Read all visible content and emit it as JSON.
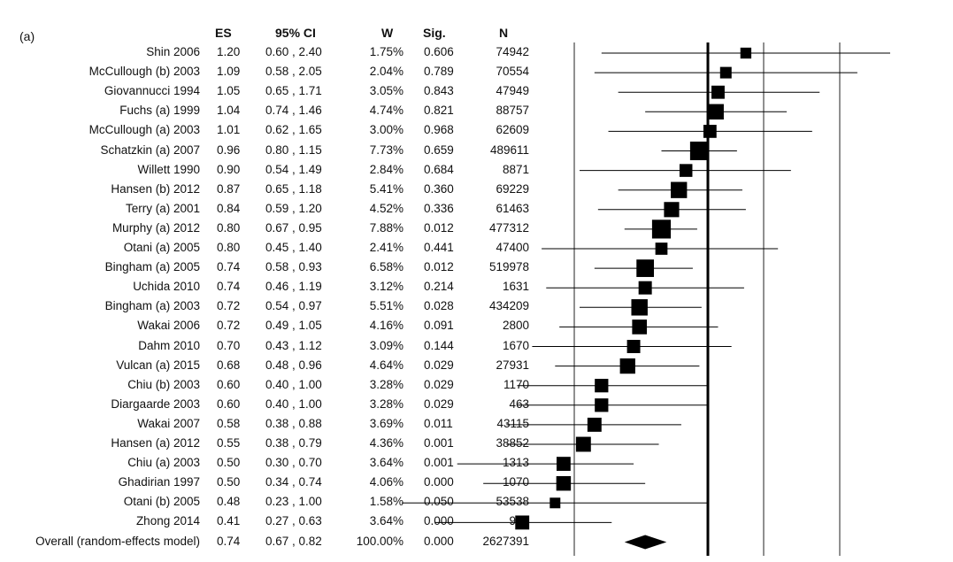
{
  "panel_label": "(a)",
  "columns": {
    "es": "ES",
    "ci": "95% CI",
    "w": "W",
    "sig": "Sig.",
    "n": "N"
  },
  "chart_data": {
    "type": "forest",
    "title": "",
    "x_scale": "log",
    "xlim": [
      0.2,
      2.6
    ],
    "reference_line": 1.0,
    "pooled_line": 0.74,
    "rows": [
      {
        "study": "Shin 2006",
        "es": 1.2,
        "es_text": "1.20",
        "ci_text": "0.60 , 2.40",
        "lo": 0.6,
        "hi": 2.4,
        "w_text": "1.75%",
        "w": 1.75,
        "sig": "0.606",
        "n": "74942"
      },
      {
        "study": "McCullough (b) 2003",
        "es": 1.09,
        "es_text": "1.09",
        "ci_text": "0.58 , 2.05",
        "lo": 0.58,
        "hi": 2.05,
        "w_text": "2.04%",
        "w": 2.04,
        "sig": "0.789",
        "n": "70554"
      },
      {
        "study": "Giovannucci 1994",
        "es": 1.05,
        "es_text": "1.05",
        "ci_text": "0.65 , 1.71",
        "lo": 0.65,
        "hi": 1.71,
        "w_text": "3.05%",
        "w": 3.05,
        "sig": "0.843",
        "n": "47949"
      },
      {
        "study": "Fuchs (a) 1999",
        "es": 1.04,
        "es_text": "1.04",
        "ci_text": "0.74 , 1.46",
        "lo": 0.74,
        "hi": 1.46,
        "w_text": "4.74%",
        "w": 4.74,
        "sig": "0.821",
        "n": "88757"
      },
      {
        "study": "McCullough (a) 2003",
        "es": 1.01,
        "es_text": "1.01",
        "ci_text": "0.62 , 1.65",
        "lo": 0.62,
        "hi": 1.65,
        "w_text": "3.00%",
        "w": 3.0,
        "sig": "0.968",
        "n": "62609"
      },
      {
        "study": "Schatzkin (a) 2007",
        "es": 0.96,
        "es_text": "0.96",
        "ci_text": "0.80 , 1.15",
        "lo": 0.8,
        "hi": 1.15,
        "w_text": "7.73%",
        "w": 7.73,
        "sig": "0.659",
        "n": "489611"
      },
      {
        "study": "Willett 1990",
        "es": 0.9,
        "es_text": "0.90",
        "ci_text": "0.54 , 1.49",
        "lo": 0.54,
        "hi": 1.49,
        "w_text": "2.84%",
        "w": 2.84,
        "sig": "0.684",
        "n": "8871"
      },
      {
        "study": "Hansen (b) 2012",
        "es": 0.87,
        "es_text": "0.87",
        "ci_text": "0.65 , 1.18",
        "lo": 0.65,
        "hi": 1.18,
        "w_text": "5.41%",
        "w": 5.41,
        "sig": "0.360",
        "n": "69229"
      },
      {
        "study": "Terry (a) 2001",
        "es": 0.84,
        "es_text": "0.84",
        "ci_text": "0.59 , 1.20",
        "lo": 0.59,
        "hi": 1.2,
        "w_text": "4.52%",
        "w": 4.52,
        "sig": "0.336",
        "n": "61463"
      },
      {
        "study": "Murphy (a) 2012",
        "es": 0.8,
        "es_text": "0.80",
        "ci_text": "0.67 , 0.95",
        "lo": 0.67,
        "hi": 0.95,
        "w_text": "7.88%",
        "w": 7.88,
        "sig": "0.012",
        "n": "477312"
      },
      {
        "study": "Otani (a) 2005",
        "es": 0.8,
        "es_text": "0.80",
        "ci_text": "0.45 , 1.40",
        "lo": 0.45,
        "hi": 1.4,
        "w_text": "2.41%",
        "w": 2.41,
        "sig": "0.441",
        "n": "47400"
      },
      {
        "study": "Bingham (a) 2005",
        "es": 0.74,
        "es_text": "0.74",
        "ci_text": "0.58 , 0.93",
        "lo": 0.58,
        "hi": 0.93,
        "w_text": "6.58%",
        "w": 6.58,
        "sig": "0.012",
        "n": "519978"
      },
      {
        "study": "Uchida 2010",
        "es": 0.74,
        "es_text": "0.74",
        "ci_text": "0.46 , 1.19",
        "lo": 0.46,
        "hi": 1.19,
        "w_text": "3.12%",
        "w": 3.12,
        "sig": "0.214",
        "n": "1631"
      },
      {
        "study": "Bingham (a) 2003",
        "es": 0.72,
        "es_text": "0.72",
        "ci_text": "0.54 , 0.97",
        "lo": 0.54,
        "hi": 0.97,
        "w_text": "5.51%",
        "w": 5.51,
        "sig": "0.028",
        "n": "434209"
      },
      {
        "study": "Wakai 2006",
        "es": 0.72,
        "es_text": "0.72",
        "ci_text": "0.49 , 1.05",
        "lo": 0.49,
        "hi": 1.05,
        "w_text": "4.16%",
        "w": 4.16,
        "sig": "0.091",
        "n": "2800"
      },
      {
        "study": "Dahm 2010",
        "es": 0.7,
        "es_text": "0.70",
        "ci_text": "0.43 , 1.12",
        "lo": 0.43,
        "hi": 1.12,
        "w_text": "3.09%",
        "w": 3.09,
        "sig": "0.144",
        "n": "1670"
      },
      {
        "study": "Vulcan (a) 2015",
        "es": 0.68,
        "es_text": "0.68",
        "ci_text": "0.48 , 0.96",
        "lo": 0.48,
        "hi": 0.96,
        "w_text": "4.64%",
        "w": 4.64,
        "sig": "0.029",
        "n": "27931"
      },
      {
        "study": "Chiu (b) 2003",
        "es": 0.6,
        "es_text": "0.60",
        "ci_text": "0.40 , 1.00",
        "lo": 0.4,
        "hi": 1.0,
        "w_text": "3.28%",
        "w": 3.28,
        "sig": "0.029",
        "n": "1170"
      },
      {
        "study": "Diargaarde  2003",
        "es": 0.6,
        "es_text": "0.60",
        "ci_text": "0.40 , 1.00",
        "lo": 0.4,
        "hi": 1.0,
        "w_text": "3.28%",
        "w": 3.28,
        "sig": "0.029",
        "n": "463"
      },
      {
        "study": "Wakai 2007",
        "es": 0.58,
        "es_text": "0.58",
        "ci_text": "0.38 , 0.88",
        "lo": 0.38,
        "hi": 0.88,
        "w_text": "3.69%",
        "w": 3.69,
        "sig": "0.011",
        "n": "43115"
      },
      {
        "study": "Hansen (a) 2012",
        "es": 0.55,
        "es_text": "0.55",
        "ci_text": "0.38 , 0.79",
        "lo": 0.38,
        "hi": 0.79,
        "w_text": "4.36%",
        "w": 4.36,
        "sig": "0.001",
        "n": "38852"
      },
      {
        "study": "Chiu (a) 2003",
        "es": 0.5,
        "es_text": "0.50",
        "ci_text": "0.30 , 0.70",
        "lo": 0.3,
        "hi": 0.7,
        "w_text": "3.64%",
        "w": 3.64,
        "sig": "0.001",
        "n": "1313"
      },
      {
        "study": "Ghadirian  1997",
        "es": 0.5,
        "es_text": "0.50",
        "ci_text": "0.34 , 0.74",
        "lo": 0.34,
        "hi": 0.74,
        "w_text": "4.06%",
        "w": 4.06,
        "sig": "0.000",
        "n": "1070"
      },
      {
        "study": "Otani (b) 2005",
        "es": 0.48,
        "es_text": "0.48",
        "ci_text": "0.23 , 1.00",
        "lo": 0.23,
        "hi": 1.0,
        "w_text": "1.58%",
        "w": 1.58,
        "sig": "0.050",
        "n": "53538"
      },
      {
        "study": "Zhong 2014",
        "es": 0.41,
        "es_text": "0.41",
        "ci_text": "0.27 , 0.63",
        "lo": 0.27,
        "hi": 0.63,
        "w_text": "3.64%",
        "w": 3.64,
        "sig": "0.000",
        "n": "954"
      }
    ],
    "overall": {
      "study": "Overall (random-effects model)",
      "es": 0.74,
      "es_text": "0.74",
      "ci_text": "0.67 , 0.82",
      "lo": 0.67,
      "hi": 0.82,
      "w_text": "100.00%",
      "sig": "0.000",
      "n": "2627391"
    }
  }
}
